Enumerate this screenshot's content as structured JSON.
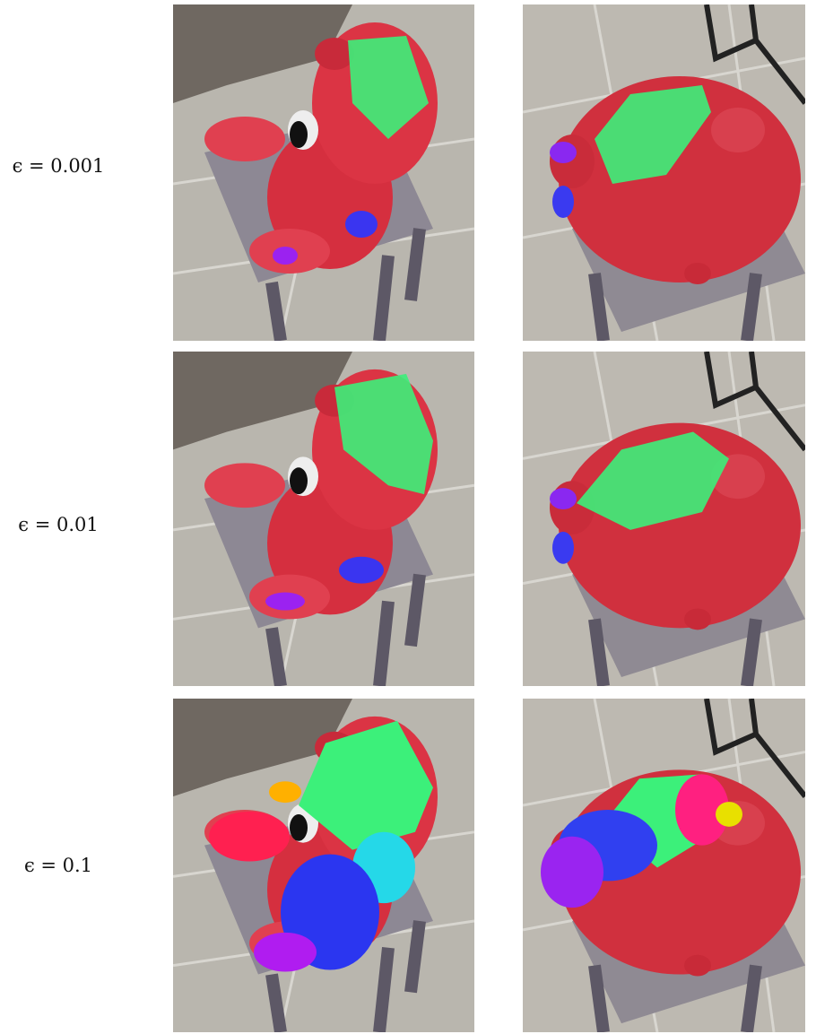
{
  "rows": [
    {
      "label": "ϵ = 0.001"
    },
    {
      "label": "ϵ = 0.01"
    },
    {
      "label": "ϵ = 0.1"
    }
  ]
}
